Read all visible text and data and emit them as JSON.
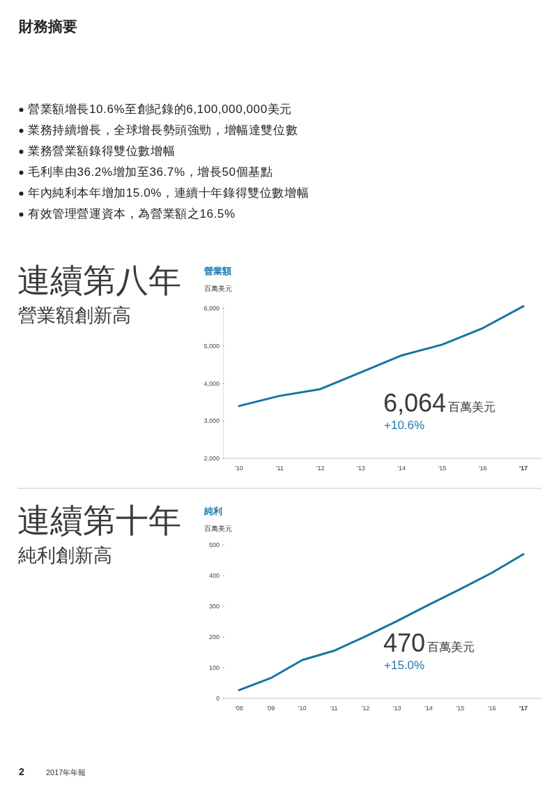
{
  "chart_data": [
    {
      "type": "other",
      "title": "財務摘要",
      "annotations": [
        "營業額增長10.6%至創紀錄的6,100,000,000美元",
        "業務持續增長，全球增長勢頭強勁，增幅達雙位數",
        "業務營業額錄得雙位數增幅",
        "毛利率由36.2%增加至36.7%，增長50個基點",
        "年內純利本年增加15.0%，連續十年錄得雙位數增幅",
        "有效管理營運資本，為營業額之16.5%"
      ]
    },
    {
      "type": "line",
      "title": "營業額",
      "ylabel": "百萬美元",
      "categories": [
        "'10",
        "'11",
        "'12",
        "'13",
        "'14",
        "'15",
        "'16",
        "'17"
      ],
      "values": [
        3400,
        3670,
        3850,
        4300,
        4750,
        5040,
        5480,
        6064
      ],
      "color": "#1574a3",
      "ylim": [
        2000,
        6100
      ],
      "yticks": [
        {
          "value": 2000,
          "label": "2,000"
        },
        {
          "value": 3000,
          "label": "3,000"
        },
        {
          "value": 4000,
          "label": "4,000"
        },
        {
          "value": 5000,
          "label": "5,000"
        },
        {
          "value": 6000,
          "label": "6,000"
        }
      ],
      "annotations": [
        "連續第八年",
        "營業額創新高",
        "6,064",
        "百萬美元",
        "+10.6%"
      ]
    },
    {
      "type": "line",
      "title": "純利",
      "ylabel": "百萬美元",
      "categories": [
        "'08",
        "'09",
        "'10",
        "'11",
        "'12",
        "'13",
        "'14",
        "'15",
        "'16",
        "'17"
      ],
      "values": [
        27,
        66,
        125,
        155,
        202,
        252,
        305,
        356,
        409,
        470
      ],
      "color": "#1574a3",
      "ylim": [
        0,
        500
      ],
      "yticks": [
        0,
        100,
        200,
        300,
        400,
        500
      ],
      "annotations": [
        "連續第十年",
        "純利創新高",
        "470",
        "百萬美元",
        "+15.0%"
      ]
    },
    {
      "type": "other",
      "annotations": [
        "2",
        "2017年年報"
      ]
    }
  ]
}
